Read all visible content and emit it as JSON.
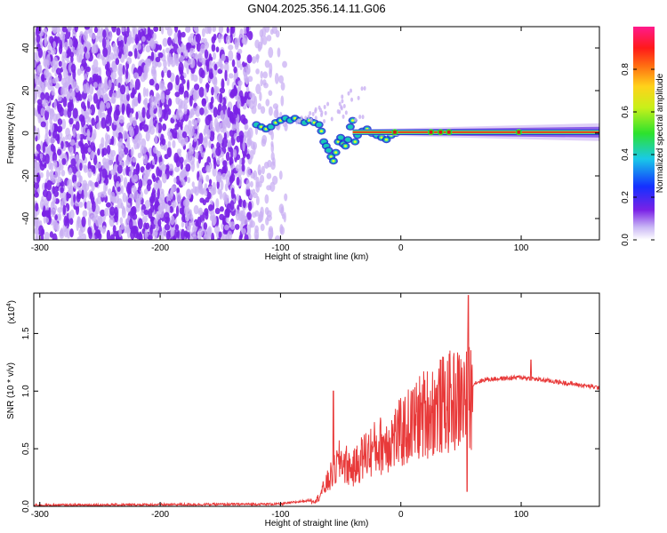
{
  "title": "GN04.2025.356.14.11.G06",
  "colors": {
    "snr_line": "#e83a3a",
    "scatter_main": "#7a22e6",
    "scatter_light": "#c9b0f3",
    "band_core": "#d81818",
    "band_edge": "#19c9b9"
  },
  "chart_data": [
    {
      "type": "heatmap",
      "name": "spectrogram",
      "xlabel": "Height of straight line (km)",
      "ylabel": "Frequency (Hz)",
      "xlim": [
        -305,
        165
      ],
      "ylim": [
        -50,
        50
      ],
      "xticks": [
        -300,
        -200,
        -100,
        0,
        100
      ],
      "xtick_labels": [
        "-300",
        "-200",
        "-100",
        "0",
        "100"
      ],
      "yticks": [
        -40,
        -20,
        0,
        20,
        40
      ],
      "ytick_labels": [
        "-40",
        "-20",
        "0",
        "20",
        "40"
      ],
      "description_regions": {
        "noise_region_km": [
          -305,
          -95
        ],
        "wandering_branch_km": [
          -125,
          -40
        ],
        "steady_line_km": [
          -40,
          165
        ],
        "steady_line_freq_hz": 0.5
      },
      "colorbar": {
        "label": "Normalized spectral amplitude",
        "range": [
          0.0,
          1.0
        ],
        "ticks": [
          0.0,
          0.2,
          0.4,
          0.6,
          0.8
        ],
        "tick_labels": [
          "0.0",
          "0.2",
          "0.4",
          "0.6",
          "0.8"
        ]
      }
    },
    {
      "type": "line",
      "name": "snr",
      "xlabel": "Height of straight line (km)",
      "ylabel": "SNR (10 * v/v)",
      "multiplier_label": "(x10",
      "multiplier_exp": "4",
      "multiplier_close": ")",
      "xlim": [
        -305,
        165
      ],
      "ylim": [
        0,
        1.85
      ],
      "xticks": [
        -300,
        -200,
        -100,
        0,
        100
      ],
      "xtick_labels": [
        "-300",
        "-200",
        "-100",
        "0",
        "100"
      ],
      "yticks": [
        0.0,
        0.5,
        1.0,
        1.5
      ],
      "ytick_labels": [
        "0.0",
        "0.5",
        "1.0",
        "1.5"
      ],
      "envelope_points": [
        {
          "x": -305,
          "y": 0.01
        },
        {
          "x": -100,
          "y": 0.02
        },
        {
          "x": -70,
          "y": 0.06
        },
        {
          "x": -60,
          "y": 0.25
        },
        {
          "x": -50,
          "y": 0.45
        },
        {
          "x": -40,
          "y": 0.35
        },
        {
          "x": -30,
          "y": 0.5
        },
        {
          "x": -15,
          "y": 0.6
        },
        {
          "x": 0,
          "y": 0.7
        },
        {
          "x": 20,
          "y": 0.9
        },
        {
          "x": 40,
          "y": 1.0
        },
        {
          "x": 55,
          "y": 1.05
        },
        {
          "x": 70,
          "y": 1.1
        },
        {
          "x": 100,
          "y": 1.12
        },
        {
          "x": 130,
          "y": 1.08
        },
        {
          "x": 165,
          "y": 1.03
        }
      ],
      "annotations": [
        {
          "x": 56,
          "y": 1.83,
          "label": "peak"
        },
        {
          "x": 55,
          "y": 0.13,
          "label": "dip"
        },
        {
          "x": -56,
          "y": 1.0,
          "label": "spike"
        },
        {
          "x": 108,
          "y": 1.27,
          "label": "spike"
        }
      ]
    }
  ]
}
